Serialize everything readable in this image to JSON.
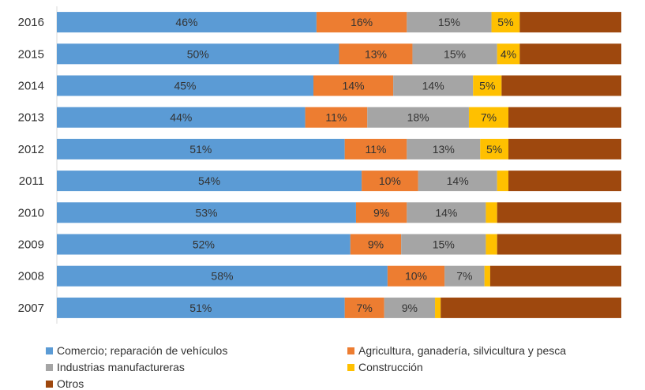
{
  "chart_data": {
    "type": "bar",
    "orientation": "horizontal",
    "stacked": "percent",
    "categories": [
      "2016",
      "2015",
      "2014",
      "2013",
      "2012",
      "2011",
      "2010",
      "2009",
      "2008",
      "2007"
    ],
    "series": [
      {
        "name": "Comercio; reparación de vehículos",
        "color": "#5B9BD5",
        "values": [
          46,
          50,
          45,
          44,
          51,
          54,
          53,
          52,
          58,
          51
        ],
        "labels": [
          "46%",
          "50%",
          "45%",
          "44%",
          "51%",
          "54%",
          "53%",
          "52%",
          "58%",
          "51%"
        ]
      },
      {
        "name": "Agricultura, ganadería,  silvicultura y pesca",
        "color": "#ED7D31",
        "values": [
          16,
          13,
          14,
          11,
          11,
          10,
          9,
          9,
          10,
          7
        ],
        "labels": [
          "16%",
          "13%",
          "14%",
          "11%",
          "11%",
          "10%",
          "9%",
          "9%",
          "10%",
          "7%"
        ]
      },
      {
        "name": "Industrias manufactureras",
        "color": "#A5A5A5",
        "values": [
          15,
          15,
          14,
          18,
          13,
          14,
          14,
          15,
          7,
          9
        ],
        "labels": [
          "15%",
          "15%",
          "14%",
          "18%",
          "13%",
          "14%",
          "14%",
          "15%",
          "7%",
          "9%"
        ]
      },
      {
        "name": "Construcción",
        "color": "#FFC000",
        "values": [
          5,
          4,
          5,
          7,
          5,
          2,
          2,
          2,
          1,
          1
        ],
        "labels": [
          "5%",
          "4%",
          "5%",
          "7%",
          "5%",
          "",
          "",
          "",
          "",
          ""
        ]
      },
      {
        "name": "Otros",
        "color": "#9E480E",
        "values": [
          18,
          18,
          21,
          20,
          20,
          20,
          22,
          22,
          23,
          32
        ],
        "labels": [
          "",
          "",
          "",
          "",
          "",
          "",
          "",
          "",
          "",
          ""
        ]
      }
    ],
    "xlim": [
      0,
      100
    ],
    "grid": false,
    "legend_position": "bottom"
  }
}
